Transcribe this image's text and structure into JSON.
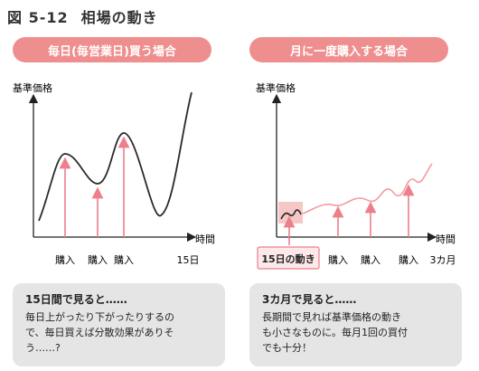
{
  "figure": {
    "number": "図 5-12",
    "title": "相場の動き"
  },
  "left_panel": {
    "header": "毎日(毎営業日)買う場合",
    "y_axis_label": "基準価格",
    "x_axis_label": "時間",
    "buy_labels": [
      "購入",
      "購入",
      "購入"
    ],
    "end_label": "15日",
    "note_title": "15日間で見ると……",
    "note_lines": [
      "毎日上がったり下がったりするの",
      "で、毎日買えば分散効果がありそ",
      "う……?"
    ]
  },
  "right_panel": {
    "header": "月に一度購入する場合",
    "y_axis_label": "基準価格",
    "x_axis_label": "時間",
    "callout_label": "15日の動き",
    "buy_labels": [
      "購入",
      "購入",
      "購入"
    ],
    "end_label": "3カ月",
    "note_title": "3カ月で見ると……",
    "note_lines": [
      "長期間で見れば基準価格の動き",
      "も小さなものに。毎月1回の買付",
      "でも十分！"
    ]
  },
  "colors": {
    "accent": "#ef8e8e",
    "arrow": "#ec7f8a",
    "line_pink": "#f29ba1",
    "highlight": "#f6c7c7",
    "note_bg": "#e5e5e5",
    "curve": "#2a2a2a"
  }
}
